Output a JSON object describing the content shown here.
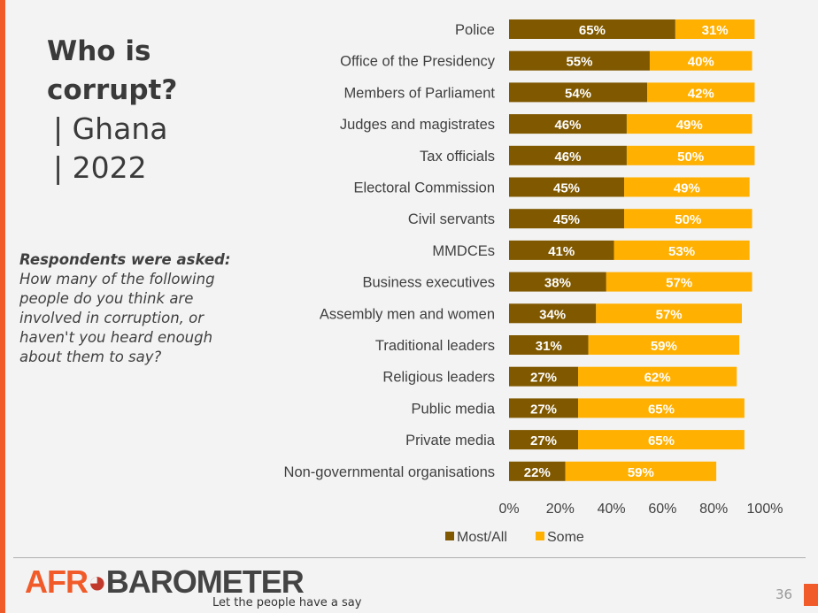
{
  "title": "Who is corrupt?",
  "subtitle_country": "| Ghana",
  "subtitle_year": "| 2022",
  "note": {
    "lead": "Respondents were asked",
    "question": "How many of the following people do you think are involved in corruption, or haven't you heard enough about them to say?"
  },
  "chart_data": {
    "type": "bar",
    "orientation": "horizontal",
    "stacked": true,
    "categories": [
      "Police",
      "Office of the Presidency",
      "Members of Parliament",
      "Judges and magistrates",
      "Tax officials",
      "Electoral Commission",
      "Civil servants",
      "MMDCEs",
      "Business executives",
      "Assembly men and women",
      "Traditional leaders",
      "Religious leaders",
      "Public media",
      "Private media",
      "Non-governmental organisations"
    ],
    "series": [
      {
        "name": "Most/All",
        "color": "#7f5800",
        "values": [
          65,
          55,
          54,
          46,
          46,
          45,
          45,
          41,
          38,
          34,
          31,
          27,
          27,
          27,
          22
        ]
      },
      {
        "name": "Some",
        "color": "#ffb000",
        "values": [
          31,
          40,
          42,
          49,
          50,
          49,
          50,
          53,
          57,
          57,
          59,
          62,
          65,
          65,
          59
        ]
      }
    ],
    "xlim": [
      0,
      100
    ],
    "xticks": [
      "0%",
      "20%",
      "40%",
      "60%",
      "80%",
      "100%"
    ],
    "legend": "bottom",
    "grid": false
  },
  "footer": {
    "logo": "AFROBAROMETER",
    "logo_a": "AFR",
    "logo_b": "BAROMETER",
    "tagline": "Let the people have a say",
    "page": "36"
  }
}
